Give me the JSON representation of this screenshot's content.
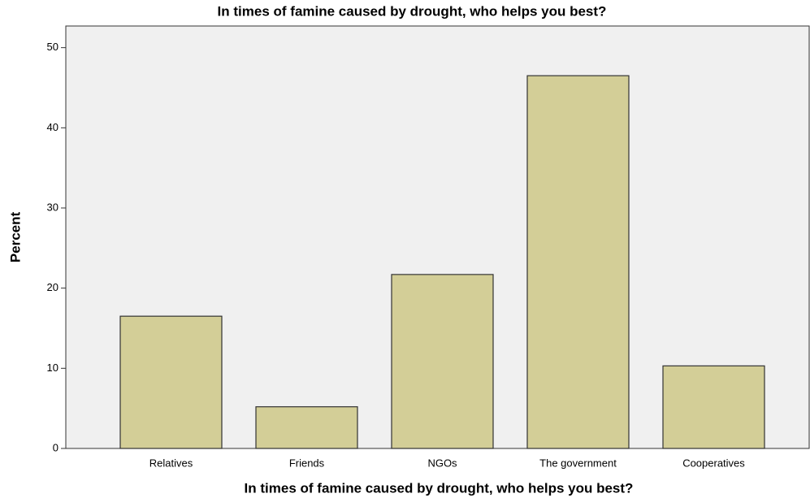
{
  "chart_data": {
    "type": "bar",
    "title": "In times of famine caused by drought, who helps you best?",
    "x_label": "In times of famine caused by drought, who helps you best?",
    "y_label": "Percent",
    "categories": [
      "Relatives",
      "Friends",
      "NGOs",
      "The government",
      "Cooperatives"
    ],
    "values": [
      16.5,
      5.2,
      21.7,
      46.5,
      10.3
    ],
    "color": "#d3ce97",
    "ylim": [
      0,
      52.7
    ],
    "yticks": [
      0,
      10,
      20,
      30,
      40,
      50
    ],
    "grid": false
  }
}
